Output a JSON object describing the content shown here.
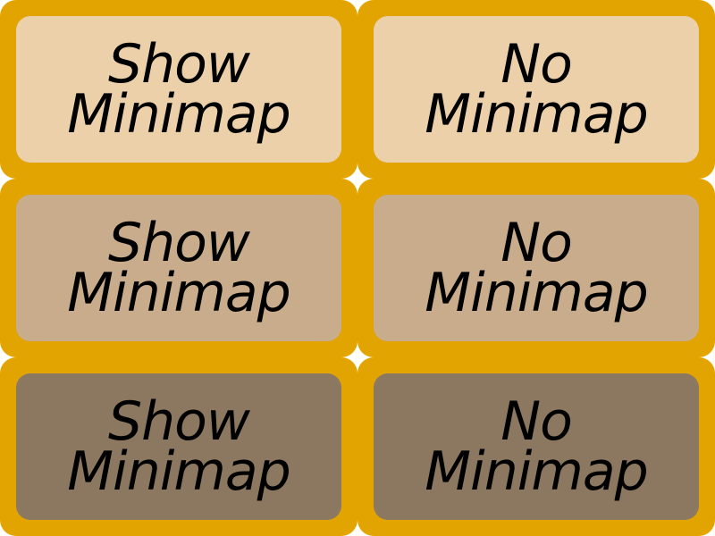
{
  "colors": {
    "frame": "#E2A400",
    "face_normal": "#ECD0AA",
    "face_hover": "#C8AC8C",
    "face_pressed": "#8C7860",
    "text": "#000000"
  },
  "buttons": [
    {
      "id": "show-minimap",
      "line1": "Show",
      "line2": "Minimap"
    },
    {
      "id": "no-minimap",
      "line1": "No",
      "line2": "Minimap"
    }
  ],
  "states": [
    "normal",
    "hover",
    "pressed"
  ]
}
